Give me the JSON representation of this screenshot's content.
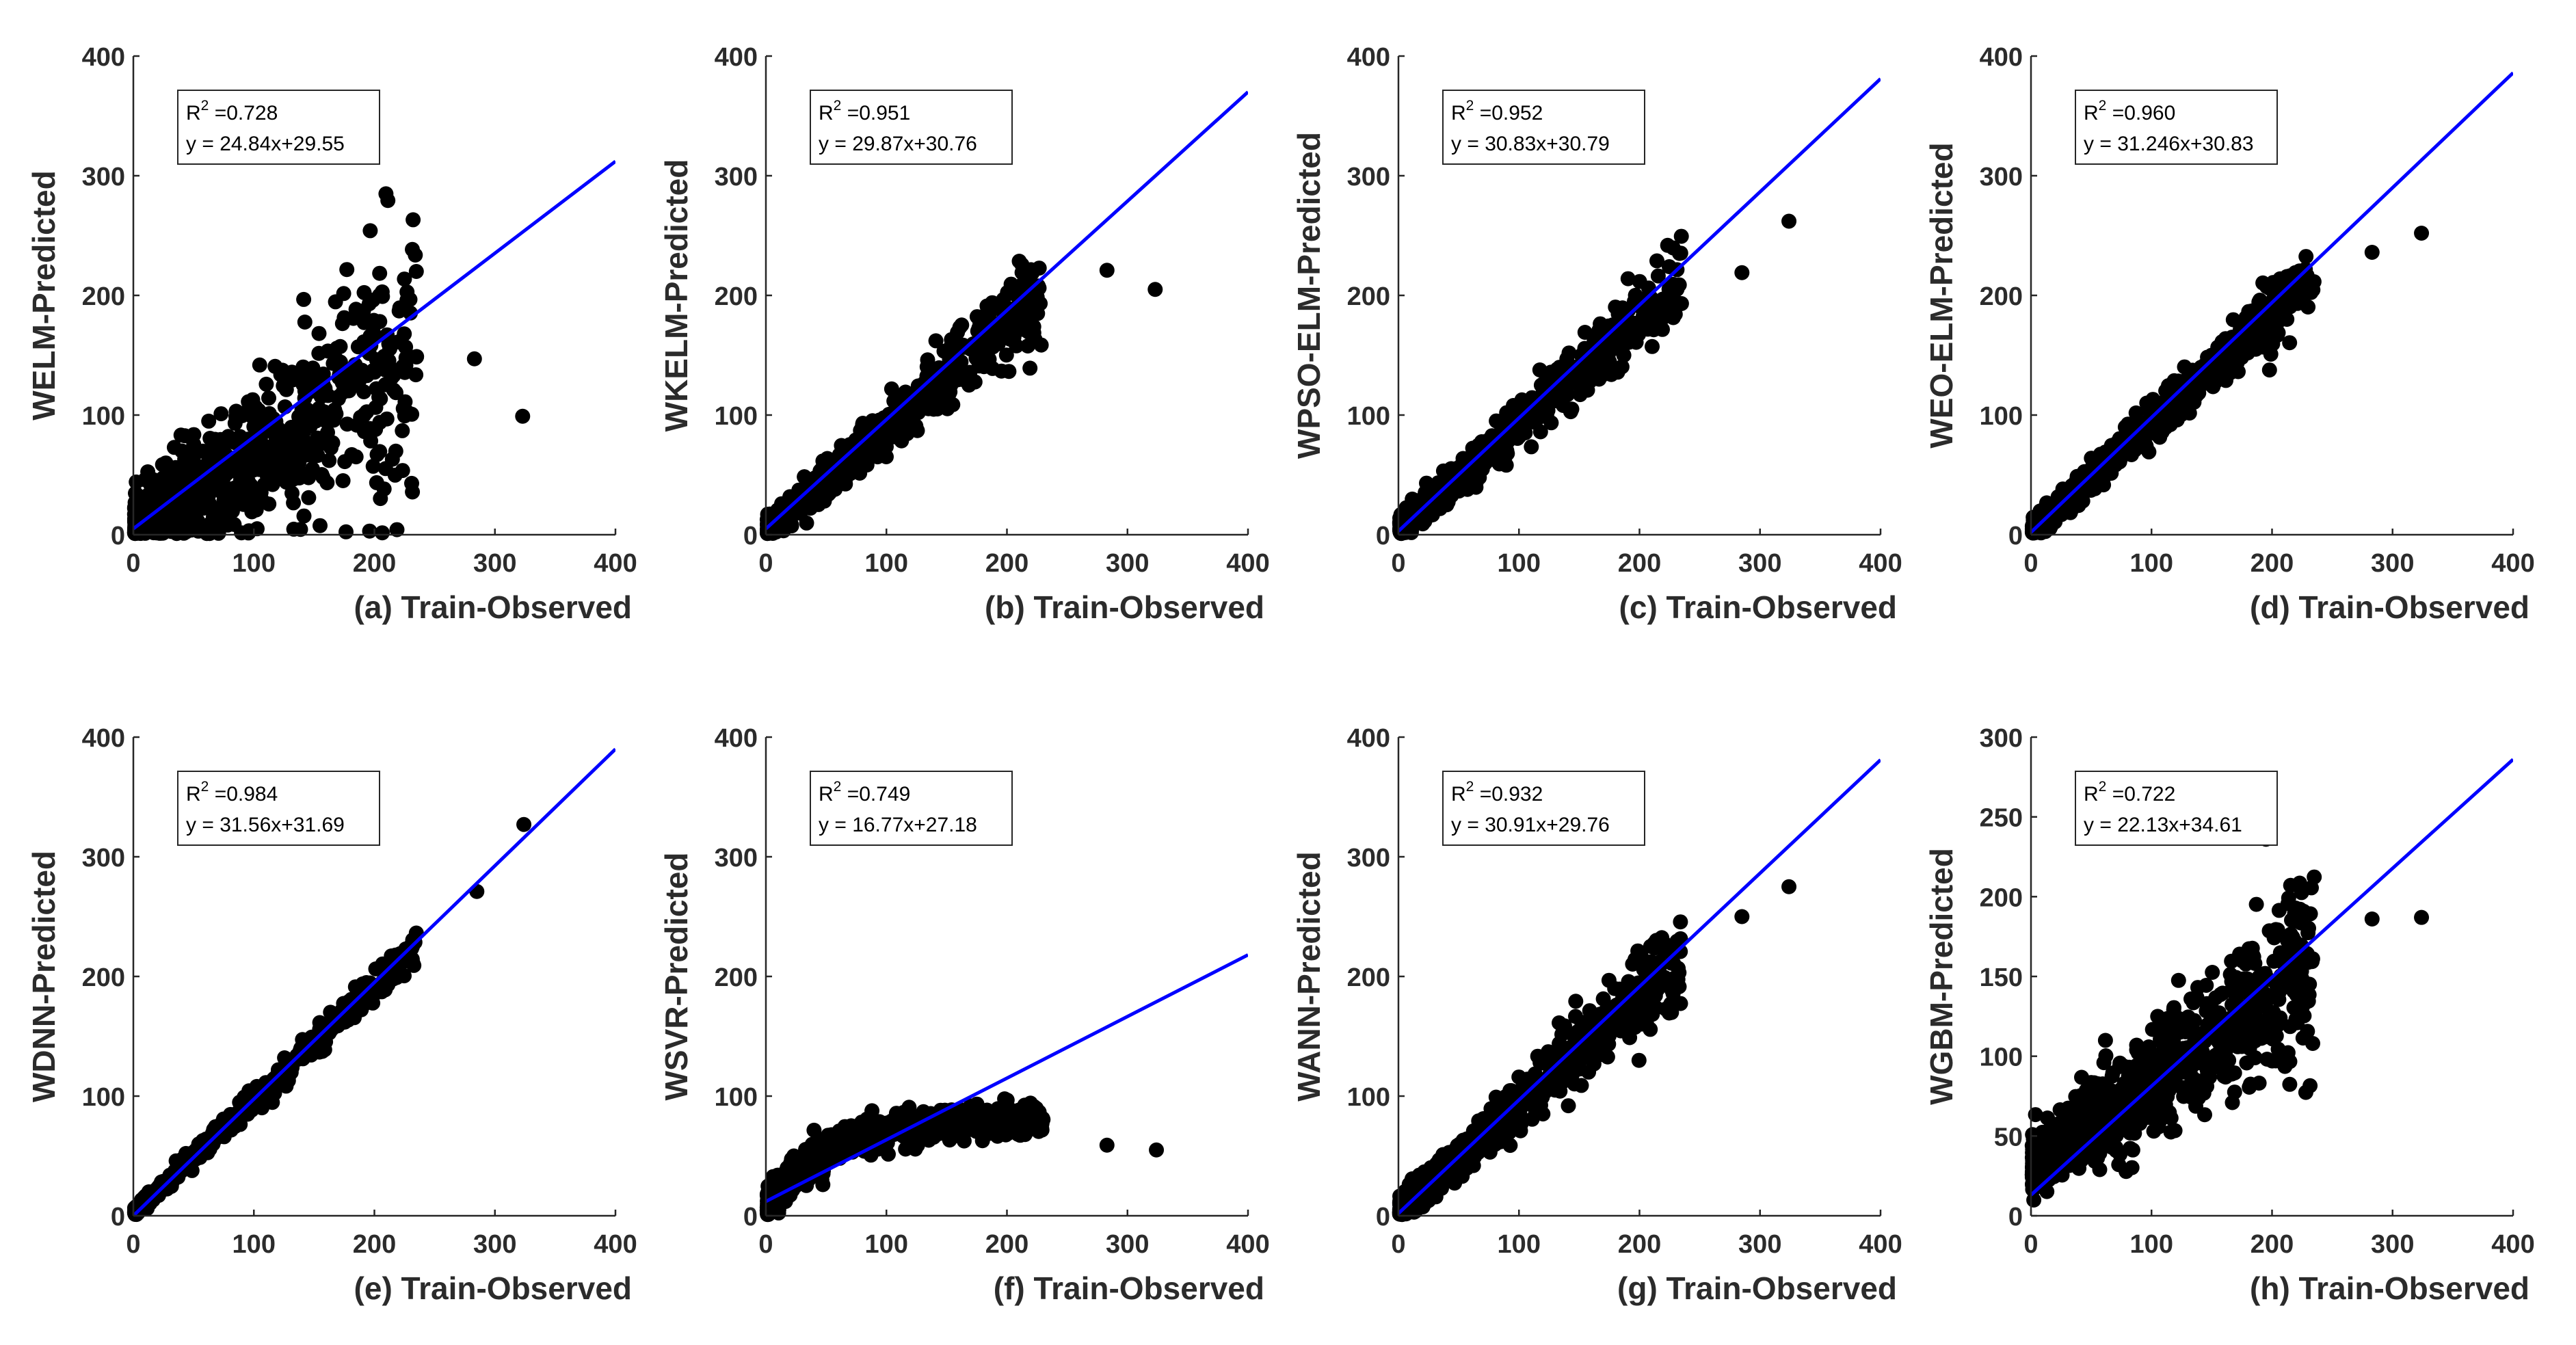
{
  "chart_data": [
    {
      "type": "scatter",
      "panel": "a",
      "xlabel": "(a) Train-Observed",
      "ylabel": "WELM-Predicted",
      "xlim": [
        0,
        400
      ],
      "ylim": [
        0,
        400
      ],
      "xticks": [
        0,
        100,
        200,
        300,
        400
      ],
      "yticks": [
        0,
        100,
        200,
        300,
        400
      ],
      "r2_label": "R",
      "r2_sup": "2",
      "r2_value": " =0.728",
      "equation": "y = 24.84x+29.55",
      "fit_line": {
        "x": [
          0,
          400
        ],
        "y": [
          5,
          312
        ]
      },
      "cloud": {
        "max_x": 235,
        "slope": 0.62,
        "intercept": 4,
        "noise": 40,
        "count": 900
      },
      "outliers": [
        [
          283,
          147
        ],
        [
          323,
          99
        ]
      ],
      "color": "#000000",
      "line_color": "#0000ff"
    },
    {
      "type": "scatter",
      "panel": "b",
      "xlabel": "(b) Train-Observed",
      "ylabel": "WKELM-Predicted",
      "xlim": [
        0,
        400
      ],
      "ylim": [
        0,
        400
      ],
      "xticks": [
        0,
        100,
        200,
        300,
        400
      ],
      "yticks": [
        0,
        100,
        200,
        300,
        400
      ],
      "r2_label": "R",
      "r2_sup": "2",
      "r2_value": " =0.951",
      "equation": "y = 29.87x+30.76",
      "fit_line": {
        "x": [
          0,
          400
        ],
        "y": [
          5,
          370
        ]
      },
      "cloud": {
        "max_x": 230,
        "slope": 0.86,
        "intercept": 4,
        "noise": 14,
        "count": 700
      },
      "outliers": [
        [
          283,
          221
        ],
        [
          323,
          205
        ]
      ],
      "color": "#000000",
      "line_color": "#0000ff"
    },
    {
      "type": "scatter",
      "panel": "c",
      "xlabel": "(c) Train-Observed",
      "ylabel": "WPSO-ELM-Predicted",
      "xlim": [
        0,
        400
      ],
      "ylim": [
        0,
        400
      ],
      "xticks": [
        0,
        100,
        200,
        300,
        400
      ],
      "yticks": [
        0,
        100,
        200,
        300,
        400
      ],
      "r2_label": "R",
      "r2_sup": "2",
      "r2_value": " =0.952",
      "equation": "y = 30.83x+30.79",
      "fit_line": {
        "x": [
          0,
          400
        ],
        "y": [
          3,
          381
        ]
      },
      "cloud": {
        "max_x": 235,
        "slope": 0.9,
        "intercept": 3,
        "noise": 13,
        "count": 700
      },
      "outliers": [
        [
          285,
          219
        ],
        [
          324,
          262
        ]
      ],
      "color": "#000000",
      "line_color": "#0000ff"
    },
    {
      "type": "scatter",
      "panel": "d",
      "xlabel": "(d) Train-Observed",
      "ylabel": "WEO-ELM-Predicted",
      "xlim": [
        0,
        400
      ],
      "ylim": [
        0,
        400
      ],
      "xticks": [
        0,
        100,
        200,
        300,
        400
      ],
      "yticks": [
        0,
        100,
        200,
        300,
        400
      ],
      "r2_label": "R",
      "r2_sup": "2",
      "r2_value": " =0.960",
      "equation": "y = 31.246x+30.83",
      "fit_line": {
        "x": [
          0,
          400
        ],
        "y": [
          2,
          386
        ]
      },
      "cloud": {
        "max_x": 235,
        "slope": 0.9,
        "intercept": 3,
        "noise": 12,
        "count": 700
      },
      "outliers": [
        [
          283,
          236
        ],
        [
          324,
          252
        ]
      ],
      "color": "#000000",
      "line_color": "#0000ff"
    },
    {
      "type": "scatter",
      "panel": "e",
      "xlabel": "(e) Train-Observed",
      "ylabel": "WDNN-Predicted",
      "xlim": [
        0,
        400
      ],
      "ylim": [
        0,
        400
      ],
      "xticks": [
        0,
        100,
        200,
        300,
        400
      ],
      "yticks": [
        0,
        100,
        200,
        300,
        400
      ],
      "r2_label": "R",
      "r2_sup": "2",
      "r2_value": " =0.984",
      "equation": "y = 31.56x+31.69",
      "fit_line": {
        "x": [
          0,
          400
        ],
        "y": [
          0,
          390
        ]
      },
      "cloud": {
        "max_x": 235,
        "slope": 0.95,
        "intercept": 2,
        "noise": 6,
        "count": 600
      },
      "outliers": [
        [
          285,
          271
        ],
        [
          324,
          327
        ]
      ],
      "color": "#000000",
      "line_color": "#0000ff"
    },
    {
      "type": "scatter",
      "panel": "f",
      "xlabel": "(f) Train-Observed",
      "ylabel": "WSVR-Predicted",
      "xlim": [
        0,
        400
      ],
      "ylim": [
        0,
        400
      ],
      "xticks": [
        0,
        100,
        200,
        300,
        400
      ],
      "yticks": [
        0,
        100,
        200,
        300,
        400
      ],
      "r2_label": "R",
      "r2_sup": "2",
      "r2_value": " =0.749",
      "equation": "y = 16.77x+27.18",
      "fit_line": {
        "x": [
          0,
          400
        ],
        "y": [
          12,
          218
        ]
      },
      "cloud": {
        "max_x": 230,
        "curve": "saturating",
        "plateau": 75,
        "rate": 0.018,
        "noise": 7,
        "count": 800
      },
      "outliers": [
        [
          283,
          59
        ],
        [
          324,
          55
        ]
      ],
      "color": "#000000",
      "line_color": "#0000ff"
    },
    {
      "type": "scatter",
      "panel": "g",
      "xlabel": "(g) Train-Observed",
      "ylabel": "WANN-Predicted",
      "xlim": [
        0,
        400
      ],
      "ylim": [
        0,
        400
      ],
      "xticks": [
        0,
        100,
        200,
        300,
        400
      ],
      "yticks": [
        0,
        100,
        200,
        300,
        400
      ],
      "r2_label": "R",
      "r2_sup": "2",
      "r2_value": " =0.932",
      "equation": "y = 30.91x+29.76",
      "fit_line": {
        "x": [
          0,
          400
        ],
        "y": [
          2,
          381
        ]
      },
      "cloud": {
        "max_x": 235,
        "slope": 0.9,
        "intercept": 3,
        "noise": 15,
        "count": 800
      },
      "outliers": [
        [
          285,
          250
        ],
        [
          324,
          275
        ]
      ],
      "color": "#000000",
      "line_color": "#0000ff"
    },
    {
      "type": "scatter",
      "panel": "h",
      "xlabel": "(h) Train-Observed",
      "ylabel": "WGBM-Predicted",
      "xlim": [
        0,
        400
      ],
      "ylim": [
        0,
        300
      ],
      "xticks": [
        0,
        100,
        200,
        300,
        400
      ],
      "yticks": [
        0,
        50,
        100,
        150,
        200,
        250,
        300
      ],
      "r2_label": "R",
      "r2_sup": "2",
      "r2_value": " =0.722",
      "equation": "y = 22.13x+34.61",
      "fit_line": {
        "x": [
          0,
          400
        ],
        "y": [
          13,
          286
        ]
      },
      "cloud": {
        "max_x": 235,
        "slope": 0.55,
        "intercept": 30,
        "noise": 22,
        "count": 1100
      },
      "outliers": [
        [
          283,
          186
        ],
        [
          324,
          187
        ],
        [
          195,
          236
        ]
      ],
      "color": "#000000",
      "line_color": "#0000ff"
    }
  ]
}
